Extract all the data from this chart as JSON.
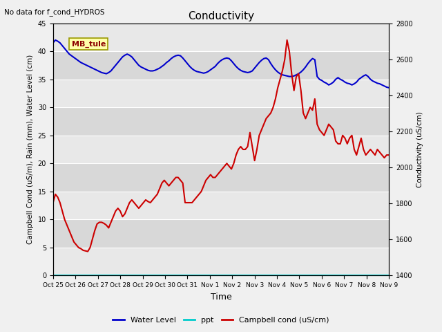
{
  "title": "Conductivity",
  "top_left_text": "No data for f_cond_HYDROS",
  "annotation_text": "MB_tule",
  "xlabel": "Time",
  "ylabel_left": "Campbell Cond (uS/m), Rain (mm), Water Level (cm)",
  "ylabel_right": "Conductivity (uS/cm)",
  "ylim_left": [
    0,
    45
  ],
  "ylim_right": [
    1400,
    2800
  ],
  "xtick_labels": [
    "Oct 25",
    "Oct 26",
    "Oct 27",
    "Oct 28",
    "Oct 29",
    "Oct 30",
    "Oct 31",
    "Nov 1",
    "Nov 2",
    "Nov 3",
    "Nov 4",
    "Nov 5",
    "Nov 6",
    "Nov 7",
    "Nov 8",
    "Nov 9"
  ],
  "yticks_left": [
    0,
    5,
    10,
    15,
    20,
    25,
    30,
    35,
    40,
    45
  ],
  "yticks_right": [
    1400,
    1600,
    1800,
    2000,
    2200,
    2400,
    2600,
    2800
  ],
  "band_colors": [
    "#e8e8e8",
    "#d8d8d8"
  ],
  "background_color": "#f0f0f0",
  "grid_color": "#ffffff",
  "water_level_color": "#0000cc",
  "ppt_color": "#00cccc",
  "campbell_color": "#cc0000",
  "legend_labels": [
    "Water Level",
    "ppt",
    "Campbell cond (uS/cm)"
  ],
  "water_level_x": [
    0,
    0.1,
    0.2,
    0.3,
    0.4,
    0.5,
    0.6,
    0.7,
    0.8,
    0.9,
    1.0,
    1.1,
    1.2,
    1.3,
    1.4,
    1.5,
    1.6,
    1.7,
    1.8,
    1.9,
    2.0,
    2.1,
    2.2,
    2.3,
    2.4,
    2.5,
    2.6,
    2.7,
    2.8,
    2.9,
    3.0,
    3.1,
    3.2,
    3.3,
    3.4,
    3.5,
    3.6,
    3.7,
    3.8,
    3.9,
    4.0,
    4.1,
    4.2,
    4.3,
    4.4,
    4.5,
    4.6,
    4.7,
    4.8,
    4.9,
    5.0,
    5.1,
    5.2,
    5.3,
    5.4,
    5.5,
    5.6,
    5.7,
    5.8,
    5.9,
    6.0,
    6.1,
    6.2,
    6.3,
    6.4,
    6.5,
    6.6,
    6.7,
    6.8,
    6.9,
    7.0,
    7.1,
    7.2,
    7.3,
    7.4,
    7.5,
    7.6,
    7.7,
    7.8,
    7.9,
    8.0,
    8.1,
    8.2,
    8.3,
    8.4,
    8.5,
    8.6,
    8.7,
    8.8,
    8.9,
    9.0,
    9.1,
    9.2,
    9.3,
    9.4,
    9.5,
    9.6,
    9.7,
    9.8,
    9.9,
    10.0,
    10.1,
    10.2,
    10.3,
    10.4,
    10.5,
    10.6,
    10.7,
    10.8,
    10.9,
    11.0,
    11.1,
    11.2,
    11.3,
    11.4,
    11.5,
    11.6,
    11.7,
    11.8,
    11.9,
    12.0,
    12.1,
    12.2,
    12.3,
    12.4,
    12.5,
    12.6,
    12.7,
    12.8,
    12.9,
    13.0,
    13.1,
    13.2,
    13.3,
    13.4,
    13.5,
    13.6,
    13.7,
    13.8,
    13.9,
    14.0,
    14.1,
    14.2,
    14.3,
    14.4,
    14.5
  ],
  "water_level_y": [
    41.5,
    42.0,
    41.8,
    41.5,
    41.0,
    40.5,
    40.0,
    39.5,
    39.2,
    38.9,
    38.6,
    38.3,
    38.0,
    37.8,
    37.6,
    37.4,
    37.2,
    37.0,
    36.8,
    36.6,
    36.4,
    36.2,
    36.1,
    36.0,
    36.2,
    36.5,
    37.0,
    37.5,
    38.0,
    38.5,
    39.0,
    39.3,
    39.5,
    39.3,
    39.0,
    38.5,
    38.0,
    37.5,
    37.2,
    37.0,
    36.8,
    36.6,
    36.5,
    36.5,
    36.6,
    36.8,
    37.0,
    37.3,
    37.6,
    38.0,
    38.3,
    38.7,
    39.0,
    39.2,
    39.3,
    39.2,
    38.8,
    38.3,
    37.8,
    37.3,
    36.9,
    36.6,
    36.4,
    36.3,
    36.2,
    36.1,
    36.2,
    36.4,
    36.7,
    37.0,
    37.3,
    37.8,
    38.2,
    38.5,
    38.7,
    38.8,
    38.7,
    38.3,
    37.8,
    37.3,
    36.9,
    36.6,
    36.4,
    36.3,
    36.2,
    36.3,
    36.5,
    37.0,
    37.5,
    38.0,
    38.4,
    38.7,
    38.8,
    38.5,
    37.8,
    37.2,
    36.7,
    36.3,
    36.0,
    35.8,
    35.7,
    35.6,
    35.5,
    35.5,
    35.6,
    35.8,
    36.0,
    36.3,
    36.7,
    37.2,
    37.8,
    38.3,
    38.7,
    38.5,
    35.5,
    35.0,
    34.8,
    34.5,
    34.3,
    34.0,
    34.2,
    34.5,
    35.0,
    35.3,
    35.0,
    34.8,
    34.5,
    34.3,
    34.2,
    34.0,
    34.2,
    34.5,
    35.0,
    35.3,
    35.6,
    35.8,
    35.5,
    35.0,
    34.7,
    34.5,
    34.3,
    34.2,
    34.0,
    33.8,
    33.6,
    33.5
  ],
  "campbell_x": [
    0,
    0.1,
    0.2,
    0.3,
    0.4,
    0.5,
    0.6,
    0.7,
    0.8,
    0.9,
    1.0,
    1.1,
    1.2,
    1.3,
    1.4,
    1.5,
    1.6,
    1.7,
    1.8,
    1.9,
    2.0,
    2.1,
    2.2,
    2.3,
    2.4,
    2.5,
    2.6,
    2.7,
    2.8,
    2.9,
    3.0,
    3.1,
    3.2,
    3.3,
    3.4,
    3.5,
    3.6,
    3.7,
    3.8,
    3.9,
    4.0,
    4.1,
    4.2,
    4.3,
    4.4,
    4.5,
    4.6,
    4.7,
    4.8,
    4.9,
    5.0,
    5.1,
    5.2,
    5.3,
    5.4,
    5.5,
    5.6,
    5.7,
    5.8,
    5.9,
    6.0,
    6.1,
    6.2,
    6.3,
    6.4,
    6.5,
    6.6,
    6.7,
    6.8,
    6.9,
    7.0,
    7.1,
    7.2,
    7.3,
    7.4,
    7.5,
    7.6,
    7.7,
    7.8,
    7.9,
    8.0,
    8.1,
    8.2,
    8.3,
    8.4,
    8.5,
    8.6,
    8.7,
    8.8,
    8.9,
    9.0,
    9.1,
    9.2,
    9.3,
    9.4,
    9.5,
    9.6,
    9.7,
    9.8,
    9.9,
    10.0,
    10.1,
    10.2,
    10.3,
    10.4,
    10.5,
    10.6,
    10.7,
    10.8,
    10.9,
    11.0,
    11.1,
    11.2,
    11.3,
    11.4,
    11.5,
    11.6,
    11.7,
    11.8,
    11.9,
    12.0,
    12.1,
    12.2,
    12.3,
    12.4,
    12.5,
    12.6,
    12.7,
    12.8,
    12.9,
    13.0,
    13.1,
    13.2,
    13.3,
    13.4,
    13.5,
    13.6,
    13.7,
    13.8,
    13.9,
    14.0,
    14.1,
    14.2,
    14.3,
    14.4,
    14.5
  ],
  "campbell_y": [
    13.0,
    14.5,
    14.0,
    13.0,
    11.5,
    10.0,
    9.0,
    8.0,
    7.0,
    6.0,
    5.5,
    5.0,
    4.8,
    4.5,
    4.4,
    4.3,
    5.0,
    6.5,
    8.0,
    9.2,
    9.5,
    9.5,
    9.3,
    9.0,
    8.5,
    9.5,
    10.5,
    11.5,
    12.0,
    11.5,
    10.5,
    11.0,
    12.0,
    13.0,
    13.5,
    13.0,
    12.5,
    12.0,
    12.5,
    13.0,
    13.5,
    13.2,
    13.0,
    13.5,
    14.0,
    14.5,
    15.5,
    16.5,
    17.0,
    16.5,
    16.0,
    16.5,
    17.0,
    17.5,
    17.5,
    17.0,
    16.5,
    13.0,
    13.0,
    13.0,
    13.0,
    13.5,
    14.0,
    14.5,
    15.0,
    16.0,
    17.0,
    17.5,
    18.0,
    17.5,
    17.5,
    18.0,
    18.5,
    19.0,
    19.5,
    20.0,
    19.5,
    19.0,
    20.0,
    21.5,
    22.5,
    23.0,
    22.5,
    22.5,
    23.0,
    25.5,
    23.0,
    20.5,
    22.5,
    25.0,
    26.0,
    27.0,
    28.0,
    28.5,
    29.0,
    30.0,
    31.5,
    33.5,
    35.0,
    36.5,
    38.5,
    42.0,
    40.0,
    36.0,
    33.0,
    35.5,
    36.0,
    33.0,
    29.0,
    28.0,
    29.0,
    30.0,
    29.5,
    31.5,
    27.0,
    26.0,
    25.5,
    25.0,
    26.0,
    27.0,
    26.5,
    26.0,
    24.0,
    23.5,
    23.5,
    25.0,
    24.5,
    23.5,
    24.5,
    25.0,
    22.5,
    21.5,
    23.0,
    24.5,
    22.5,
    21.5,
    22.0,
    22.5,
    22.0,
    21.5,
    22.5,
    22.0,
    21.5,
    21.0,
    21.5,
    21.5
  ]
}
